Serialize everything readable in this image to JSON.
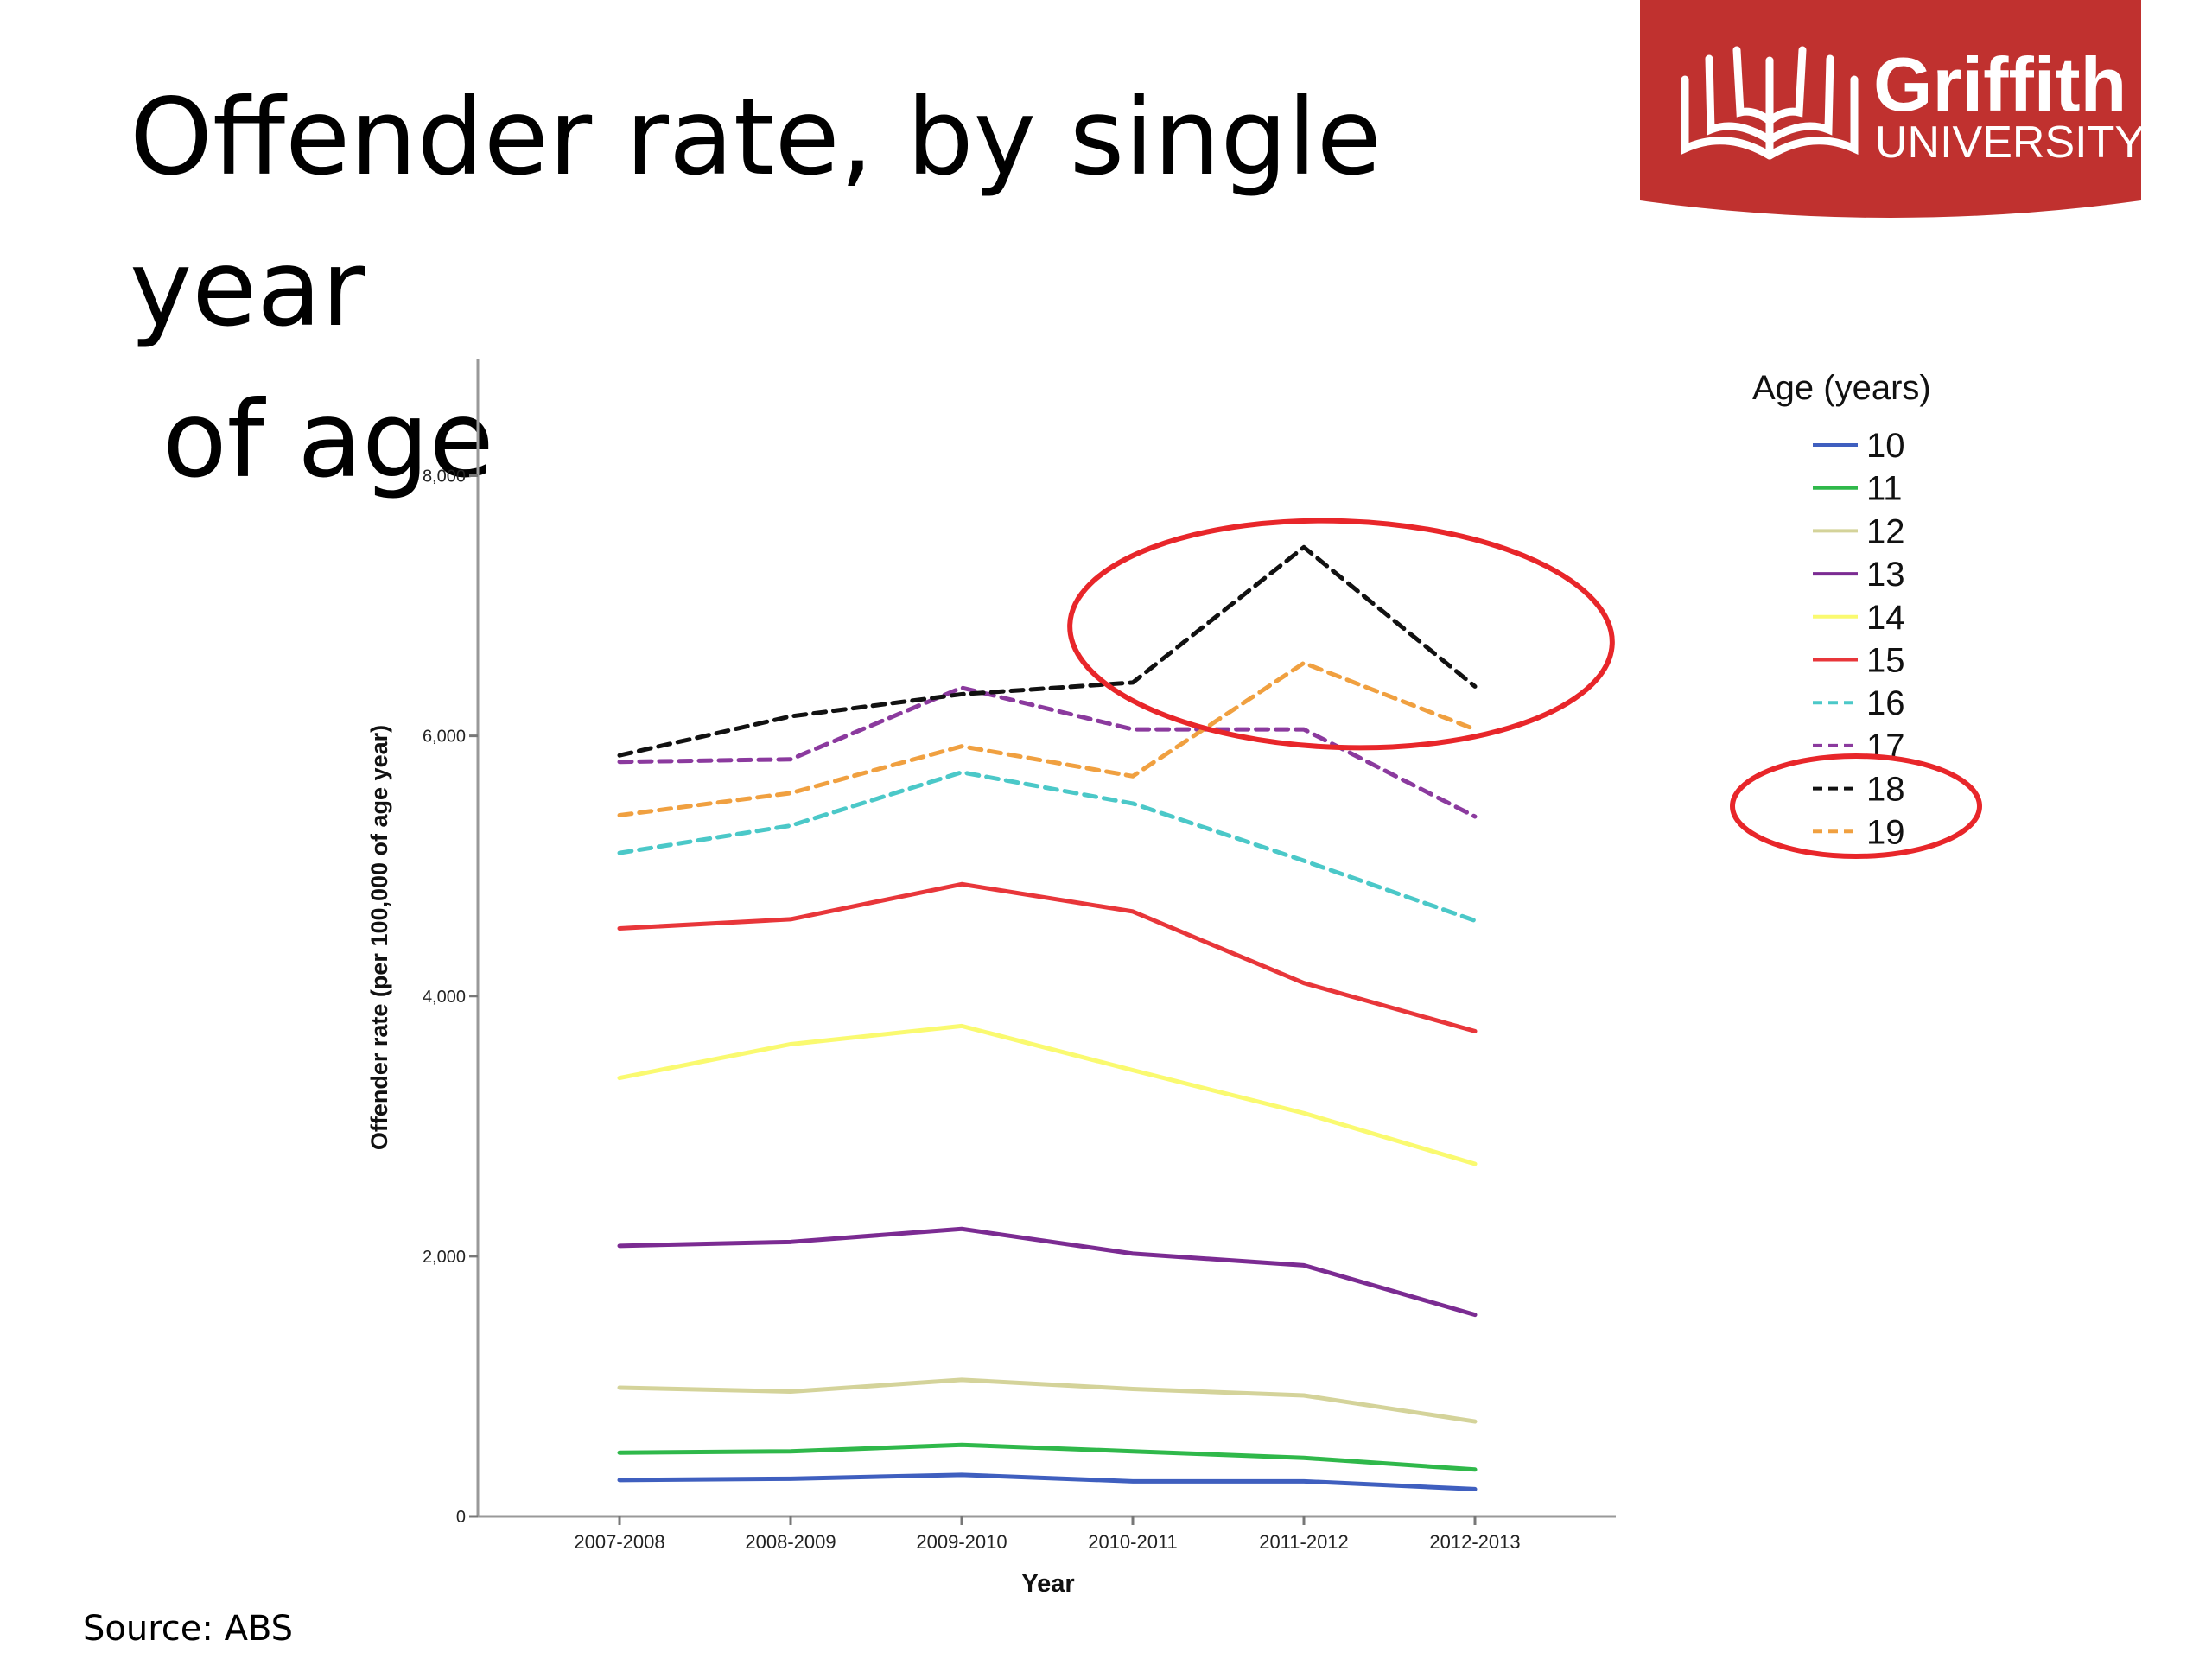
{
  "slide": {
    "title_line1": "Offender rate, by single year",
    "title_line2": "of age",
    "source": "Source: ABS"
  },
  "logo": {
    "name": "Griffith",
    "subtitle": "UNIVERSITY",
    "bg_color": "#c0312f"
  },
  "chart_data": {
    "type": "line",
    "categories": [
      "2007-2008",
      "2008-2009",
      "2009-2010",
      "2010-2011",
      "2011-2012",
      "2012-2013"
    ],
    "xlabel": "Year",
    "ylabel": "Offender rate (per 100,000 of age year)",
    "ylim": [
      0,
      8900
    ],
    "yticks": [
      0,
      2000,
      4000,
      6000,
      8000
    ],
    "ytick_labels": [
      "0",
      "2,000",
      "4,000",
      "6,000",
      "8,000"
    ],
    "legend_title": "Age (years)",
    "legend_position": "right",
    "grid": false,
    "series": [
      {
        "name": "10",
        "color": "#3f5fbf",
        "dash": "solid",
        "values": [
          280,
          290,
          320,
          270,
          270,
          210
        ]
      },
      {
        "name": "11",
        "color": "#2fb84a",
        "dash": "solid",
        "values": [
          490,
          500,
          550,
          500,
          450,
          360
        ]
      },
      {
        "name": "12",
        "color": "#d4d39a",
        "dash": "solid",
        "values": [
          990,
          960,
          1050,
          980,
          930,
          730
        ]
      },
      {
        "name": "13",
        "color": "#7b2b92",
        "dash": "solid",
        "values": [
          2080,
          2110,
          2210,
          2020,
          1930,
          1550
        ]
      },
      {
        "name": "14",
        "color": "#fafa70",
        "dash": "solid",
        "values": [
          3370,
          3630,
          3770,
          3430,
          3100,
          2710
        ]
      },
      {
        "name": "15",
        "color": "#e8363a",
        "dash": "solid",
        "values": [
          4520,
          4590,
          4860,
          4650,
          4100,
          3730
        ]
      },
      {
        "name": "16",
        "color": "#4bc8c8",
        "dash": "dashed",
        "values": [
          5100,
          5310,
          5720,
          5480,
          5040,
          4580
        ]
      },
      {
        "name": "17",
        "color": "#8b3a9e",
        "dash": "dashed",
        "values": [
          5800,
          5820,
          6370,
          6050,
          6050,
          5380
        ]
      },
      {
        "name": "18",
        "color": "#111111",
        "dash": "dashed",
        "values": [
          5850,
          6150,
          6320,
          6410,
          7450,
          6380
        ]
      },
      {
        "name": "19",
        "color": "#f0a040",
        "dash": "dashed",
        "values": [
          5390,
          5560,
          5920,
          5690,
          6560,
          6050
        ]
      }
    ],
    "annotations": [
      {
        "type": "ellipse",
        "target": "series 18 and 19 peaks, 2010-2013",
        "color": "#e8262a"
      },
      {
        "type": "ellipse",
        "target": "legend entries 18 and 19",
        "color": "#e8262a"
      }
    ]
  }
}
